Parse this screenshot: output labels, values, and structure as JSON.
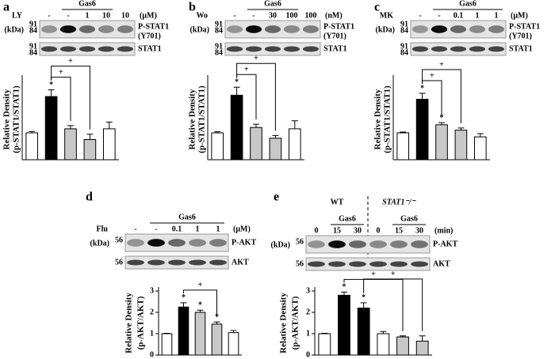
{
  "chart_data": [
    {
      "type": "bar",
      "panel": "a",
      "treatment": "LY",
      "group_labels": [
        "Gas6"
      ],
      "lanes": [
        "-",
        "-",
        "1",
        "10",
        "10"
      ],
      "unit": "(μM)",
      "kda": "(kDa)",
      "blots": [
        {
          "markers": [
            "91",
            "84"
          ],
          "label": "P-STAT1",
          "sublabel": "(Y701)"
        },
        {
          "markers": [
            "91",
            "84"
          ],
          "label": "STAT1"
        }
      ],
      "ylabel": [
        "Relative Density",
        "(p-STAT1/STAT1)"
      ],
      "values": [
        1,
        2.35,
        1.15,
        0.75,
        1.15
      ],
      "errors": [
        0.05,
        0.25,
        0.12,
        0.2,
        0.25
      ],
      "colors": [
        "#ffffff",
        "#000000",
        "#c8c8c8",
        "#c8c8c8",
        "#ffffff"
      ],
      "annotations": [
        null,
        "*",
        null,
        null,
        null
      ],
      "significance": [
        "+",
        "+"
      ],
      "ylim": [
        0,
        3
      ]
    },
    {
      "type": "bar",
      "panel": "b",
      "treatment": "Wo",
      "group_labels": [
        "Gas6"
      ],
      "lanes": [
        "-",
        "-",
        "30",
        "100",
        "100"
      ],
      "unit": "(nM)",
      "kda": "(kDa)",
      "blots": [
        {
          "markers": [
            "91",
            "84"
          ],
          "label": "P-STAT1",
          "sublabel": "(Y701)"
        },
        {
          "markers": [
            "91",
            "84"
          ],
          "label": "STAT1"
        }
      ],
      "ylabel": [
        "Relative Density",
        "(p-STAT1/STAT1)"
      ],
      "values": [
        1,
        2.4,
        1.2,
        0.8,
        1.15
      ],
      "errors": [
        0.04,
        0.3,
        0.12,
        0.1,
        0.3
      ],
      "colors": [
        "#ffffff",
        "#000000",
        "#c8c8c8",
        "#c8c8c8",
        "#ffffff"
      ],
      "annotations": [
        null,
        "*",
        null,
        null,
        null
      ],
      "significance": [
        "+",
        "+"
      ],
      "ylim": [
        0,
        3
      ]
    },
    {
      "type": "bar",
      "panel": "c",
      "treatment": "MK",
      "group_labels": [
        "Gas6"
      ],
      "lanes": [
        "-",
        "-",
        "0.1",
        "1",
        "1"
      ],
      "unit": "(μM)",
      "kda": "(kDa)",
      "blots": [
        {
          "markers": [
            "91",
            "84"
          ],
          "label": "P-STAT1",
          "sublabel": "(Y701)"
        },
        {
          "markers": [
            "91",
            "84"
          ],
          "label": "STAT1"
        }
      ],
      "ylabel": [
        "Relative Density",
        "(p-STAT1/STAT1)"
      ],
      "values": [
        1,
        2.25,
        1.3,
        1.1,
        0.85
      ],
      "errors": [
        0.03,
        0.22,
        0.08,
        0.08,
        0.12
      ],
      "colors": [
        "#ffffff",
        "#000000",
        "#c8c8c8",
        "#c8c8c8",
        "#ffffff"
      ],
      "annotations": [
        null,
        "*",
        "*",
        null,
        null
      ],
      "significance": [
        "+",
        "+"
      ],
      "ylim": [
        0,
        3
      ]
    },
    {
      "type": "bar",
      "panel": "d",
      "treatment": "Flu",
      "group_labels": [
        "Gas6"
      ],
      "lanes": [
        "-",
        "-",
        "0.1",
        "1",
        "1"
      ],
      "unit": "(μM)",
      "kda": "(kDa)",
      "blots": [
        {
          "markers": [
            "56"
          ],
          "label": "P-AKT"
        },
        {
          "markers": [
            "56"
          ],
          "label": "AKT"
        }
      ],
      "ylabel": [
        "Relative Density",
        "(p-AKT/AKT)"
      ],
      "values": [
        1,
        2.25,
        2.0,
        1.45,
        1.05
      ],
      "errors": [
        0.02,
        0.2,
        0.1,
        0.1,
        0.1
      ],
      "colors": [
        "#ffffff",
        "#000000",
        "#c8c8c8",
        "#c8c8c8",
        "#ffffff"
      ],
      "annotations": [
        null,
        "*",
        "*",
        "*",
        null
      ],
      "significance": [
        "+"
      ],
      "ylim": [
        0,
        3
      ],
      "yticks": [
        0,
        1,
        2,
        3
      ]
    },
    {
      "type": "bar",
      "panel": "e",
      "genotypes": [
        "WT",
        "STAT1⁻/⁻"
      ],
      "group_labels": [
        "Gas6",
        "Gas6"
      ],
      "lanes": [
        "0",
        "15",
        "30",
        "0",
        "15",
        "30"
      ],
      "unit": "(min)",
      "kda": "(kDa)",
      "blots": [
        {
          "markers": [
            "56"
          ],
          "label": "P-AKT"
        },
        {
          "markers": [
            "56"
          ],
          "label": "AKT"
        }
      ],
      "ylabel": [
        "Relative Density",
        "(p-AKT/AKT)"
      ],
      "values": [
        1,
        2.8,
        2.2,
        1.0,
        0.85,
        0.65
      ],
      "errors": [
        0.02,
        0.15,
        0.25,
        0.1,
        0.05,
        0.25
      ],
      "colors": [
        "#ffffff",
        "#000000",
        "#000000",
        "#ffffff",
        "#c8c8c8",
        "#c8c8c8"
      ],
      "annotations": [
        null,
        "*",
        "*",
        null,
        null,
        null
      ],
      "significance": [
        "+",
        "+"
      ],
      "ylim": [
        0,
        3
      ],
      "yticks": [
        0,
        1,
        2,
        3
      ]
    }
  ]
}
